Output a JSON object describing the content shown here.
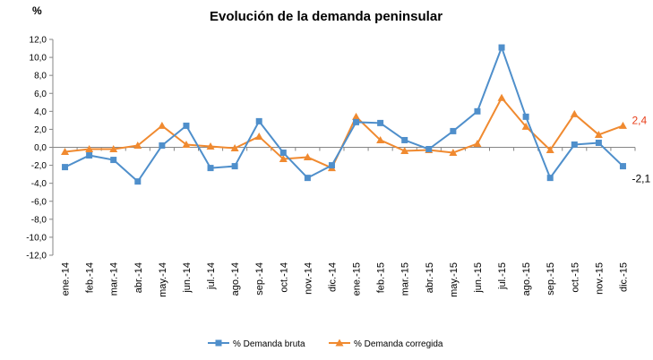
{
  "chart_data": {
    "type": "line",
    "title": "Evolución de la demanda peninsular",
    "ylabel": "%",
    "xlabel": "",
    "ylim": [
      -12,
      12
    ],
    "ytick_step": 2,
    "ytick_labels": [
      "12,0",
      "10,0",
      "8,0",
      "6,0",
      "4,0",
      "2,0",
      "0,0",
      "-2,0",
      "-4,0",
      "-6,0",
      "-8,0",
      "-10,0",
      "-12,0"
    ],
    "grid": false,
    "legend_position": "bottom",
    "categories": [
      "ene.-14",
      "feb.-14",
      "mar.-14",
      "abr.-14",
      "may.-14",
      "jun.-14",
      "jul.-14",
      "ago.-14",
      "sep.-14",
      "oct.-14",
      "nov.-14",
      "dic.-14",
      "ene.-15",
      "feb.-15",
      "mar.-15",
      "abr.-15",
      "may.-15",
      "jun.-15",
      "jul.-15",
      "ago.-15",
      "sep.-15",
      "oct.-15",
      "nov.-15",
      "dic.-15"
    ],
    "series": [
      {
        "name": "% Demanda bruta",
        "color": "#4f8fcb",
        "marker": "square",
        "values": [
          -2.2,
          -0.9,
          -1.4,
          -3.8,
          0.2,
          2.4,
          -2.3,
          -2.1,
          2.9,
          -0.6,
          -3.4,
          -2.0,
          2.8,
          2.7,
          0.8,
          -0.2,
          1.8,
          4.0,
          11.1,
          3.4,
          -3.4,
          0.3,
          0.5,
          -2.1
        ],
        "end_label": "-2,1",
        "end_label_color": "#000000"
      },
      {
        "name": "% Demanda corregida",
        "color": "#f08a30",
        "marker": "triangle",
        "values": [
          -0.5,
          -0.2,
          -0.2,
          0.2,
          2.4,
          0.3,
          0.1,
          -0.1,
          1.2,
          -1.3,
          -1.1,
          -2.3,
          3.4,
          0.8,
          -0.4,
          -0.3,
          -0.6,
          0.4,
          5.5,
          2.3,
          -0.3,
          3.7,
          1.4,
          2.4
        ],
        "end_label": "2,4",
        "end_label_color": "#e8401c"
      }
    ]
  }
}
